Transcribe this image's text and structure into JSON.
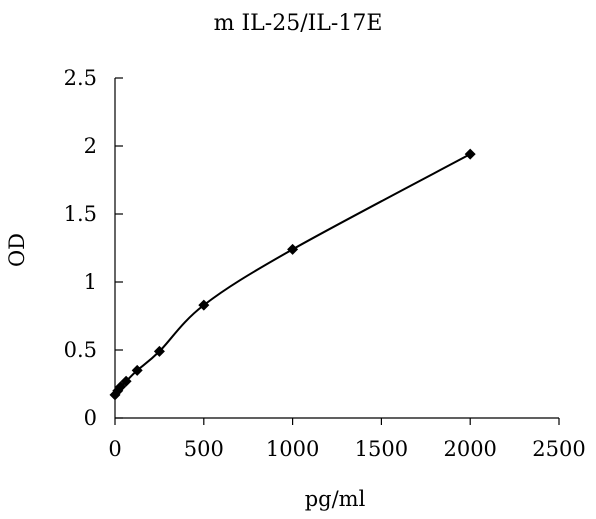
{
  "chart_data": {
    "type": "line",
    "title": "m IL-25/IL-17E",
    "xlabel": "pg/ml",
    "ylabel": "OD",
    "xlim": [
      0,
      2500
    ],
    "ylim": [
      0,
      2.5
    ],
    "xticks": [
      0,
      500,
      1000,
      1500,
      2000,
      2500
    ],
    "xtick_labels": [
      "0",
      "500",
      "1000",
      "1500",
      "2000",
      "2500"
    ],
    "yticks": [
      0,
      0.5,
      1,
      1.5,
      2,
      2.5
    ],
    "ytick_labels": [
      "0",
      "0.5",
      "1",
      "1.5",
      "2",
      "2.5"
    ],
    "grid": false,
    "legend": "none",
    "colors": {
      "line": "#000000",
      "marker": "#000000",
      "axis": "#000000"
    },
    "marker": "diamond",
    "series": [
      {
        "x": [
          0,
          15.6,
          31.25,
          62.5,
          125,
          250,
          500,
          1000,
          2000
        ],
        "y": [
          0.17,
          0.2,
          0.23,
          0.27,
          0.35,
          0.49,
          0.83,
          1.24,
          1.94
        ]
      }
    ]
  }
}
